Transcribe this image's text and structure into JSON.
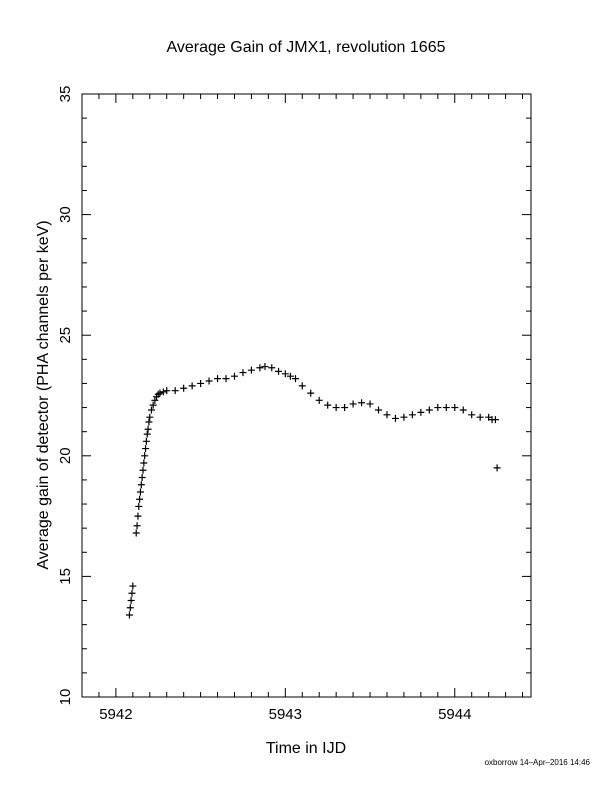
{
  "chart_data": {
    "type": "scatter",
    "title": "Average Gain of JMX1, revolution 1665",
    "xlabel": "Time in IJD",
    "ylabel": "Average gain of detector (PHA channels per keV)",
    "xlim": [
      5941.8,
      5944.45
    ],
    "ylim": [
      10,
      35
    ],
    "xticks": [
      5942,
      5943,
      5944
    ],
    "xtick_labels": [
      "5942",
      "5943",
      "5944"
    ],
    "yticks": [
      10,
      15,
      20,
      25,
      30,
      35
    ],
    "ytick_labels": [
      "10",
      "15",
      "20",
      "25",
      "30",
      "35"
    ],
    "marker": "plus",
    "color": "#000000",
    "grid": false,
    "legend": "none",
    "series": [
      {
        "x": [
          5942.08,
          5942.085,
          5942.09,
          5942.095,
          5942.1,
          5942.12,
          5942.125,
          5942.13,
          5942.135,
          5942.14,
          5942.145,
          5942.15,
          5942.155,
          5942.16,
          5942.165,
          5942.17,
          5942.175,
          5942.18,
          5942.185,
          5942.19,
          5942.195,
          5942.2,
          5942.21,
          5942.22,
          5942.23,
          5942.24,
          5942.25,
          5942.26,
          5942.28,
          5942.3,
          5942.35,
          5942.4,
          5942.45,
          5942.5,
          5942.55,
          5942.6,
          5942.65,
          5942.7,
          5942.75,
          5942.8,
          5942.85,
          5942.88,
          5942.92,
          5942.96,
          5943.0,
          5943.03,
          5943.06,
          5943.1,
          5943.15,
          5943.2,
          5943.25,
          5943.3,
          5943.35,
          5943.4,
          5943.45,
          5943.5,
          5943.55,
          5943.6,
          5943.65,
          5943.7,
          5943.75,
          5943.8,
          5943.85,
          5943.9,
          5943.95,
          5944.0,
          5944.05,
          5944.1,
          5944.15,
          5944.2,
          5944.22,
          5944.24,
          5944.25
        ],
        "y": [
          13.4,
          13.7,
          14.0,
          14.3,
          14.6,
          16.8,
          17.1,
          17.5,
          17.9,
          18.2,
          18.5,
          18.8,
          19.1,
          19.4,
          19.7,
          20.0,
          20.3,
          20.6,
          20.9,
          21.1,
          21.4,
          21.6,
          21.9,
          22.1,
          22.3,
          22.45,
          22.55,
          22.6,
          22.65,
          22.7,
          22.7,
          22.8,
          22.9,
          23.0,
          23.1,
          23.2,
          23.2,
          23.3,
          23.45,
          23.55,
          23.65,
          23.7,
          23.65,
          23.5,
          23.4,
          23.3,
          23.2,
          22.9,
          22.6,
          22.3,
          22.1,
          22.0,
          22.0,
          22.15,
          22.2,
          22.15,
          21.9,
          21.7,
          21.55,
          21.6,
          21.7,
          21.8,
          21.9,
          22.0,
          22.0,
          22.0,
          21.9,
          21.7,
          21.6,
          21.6,
          21.5,
          21.5,
          19.5
        ]
      }
    ]
  },
  "footer": "oxborrow 14–Apr–2016 14:46"
}
